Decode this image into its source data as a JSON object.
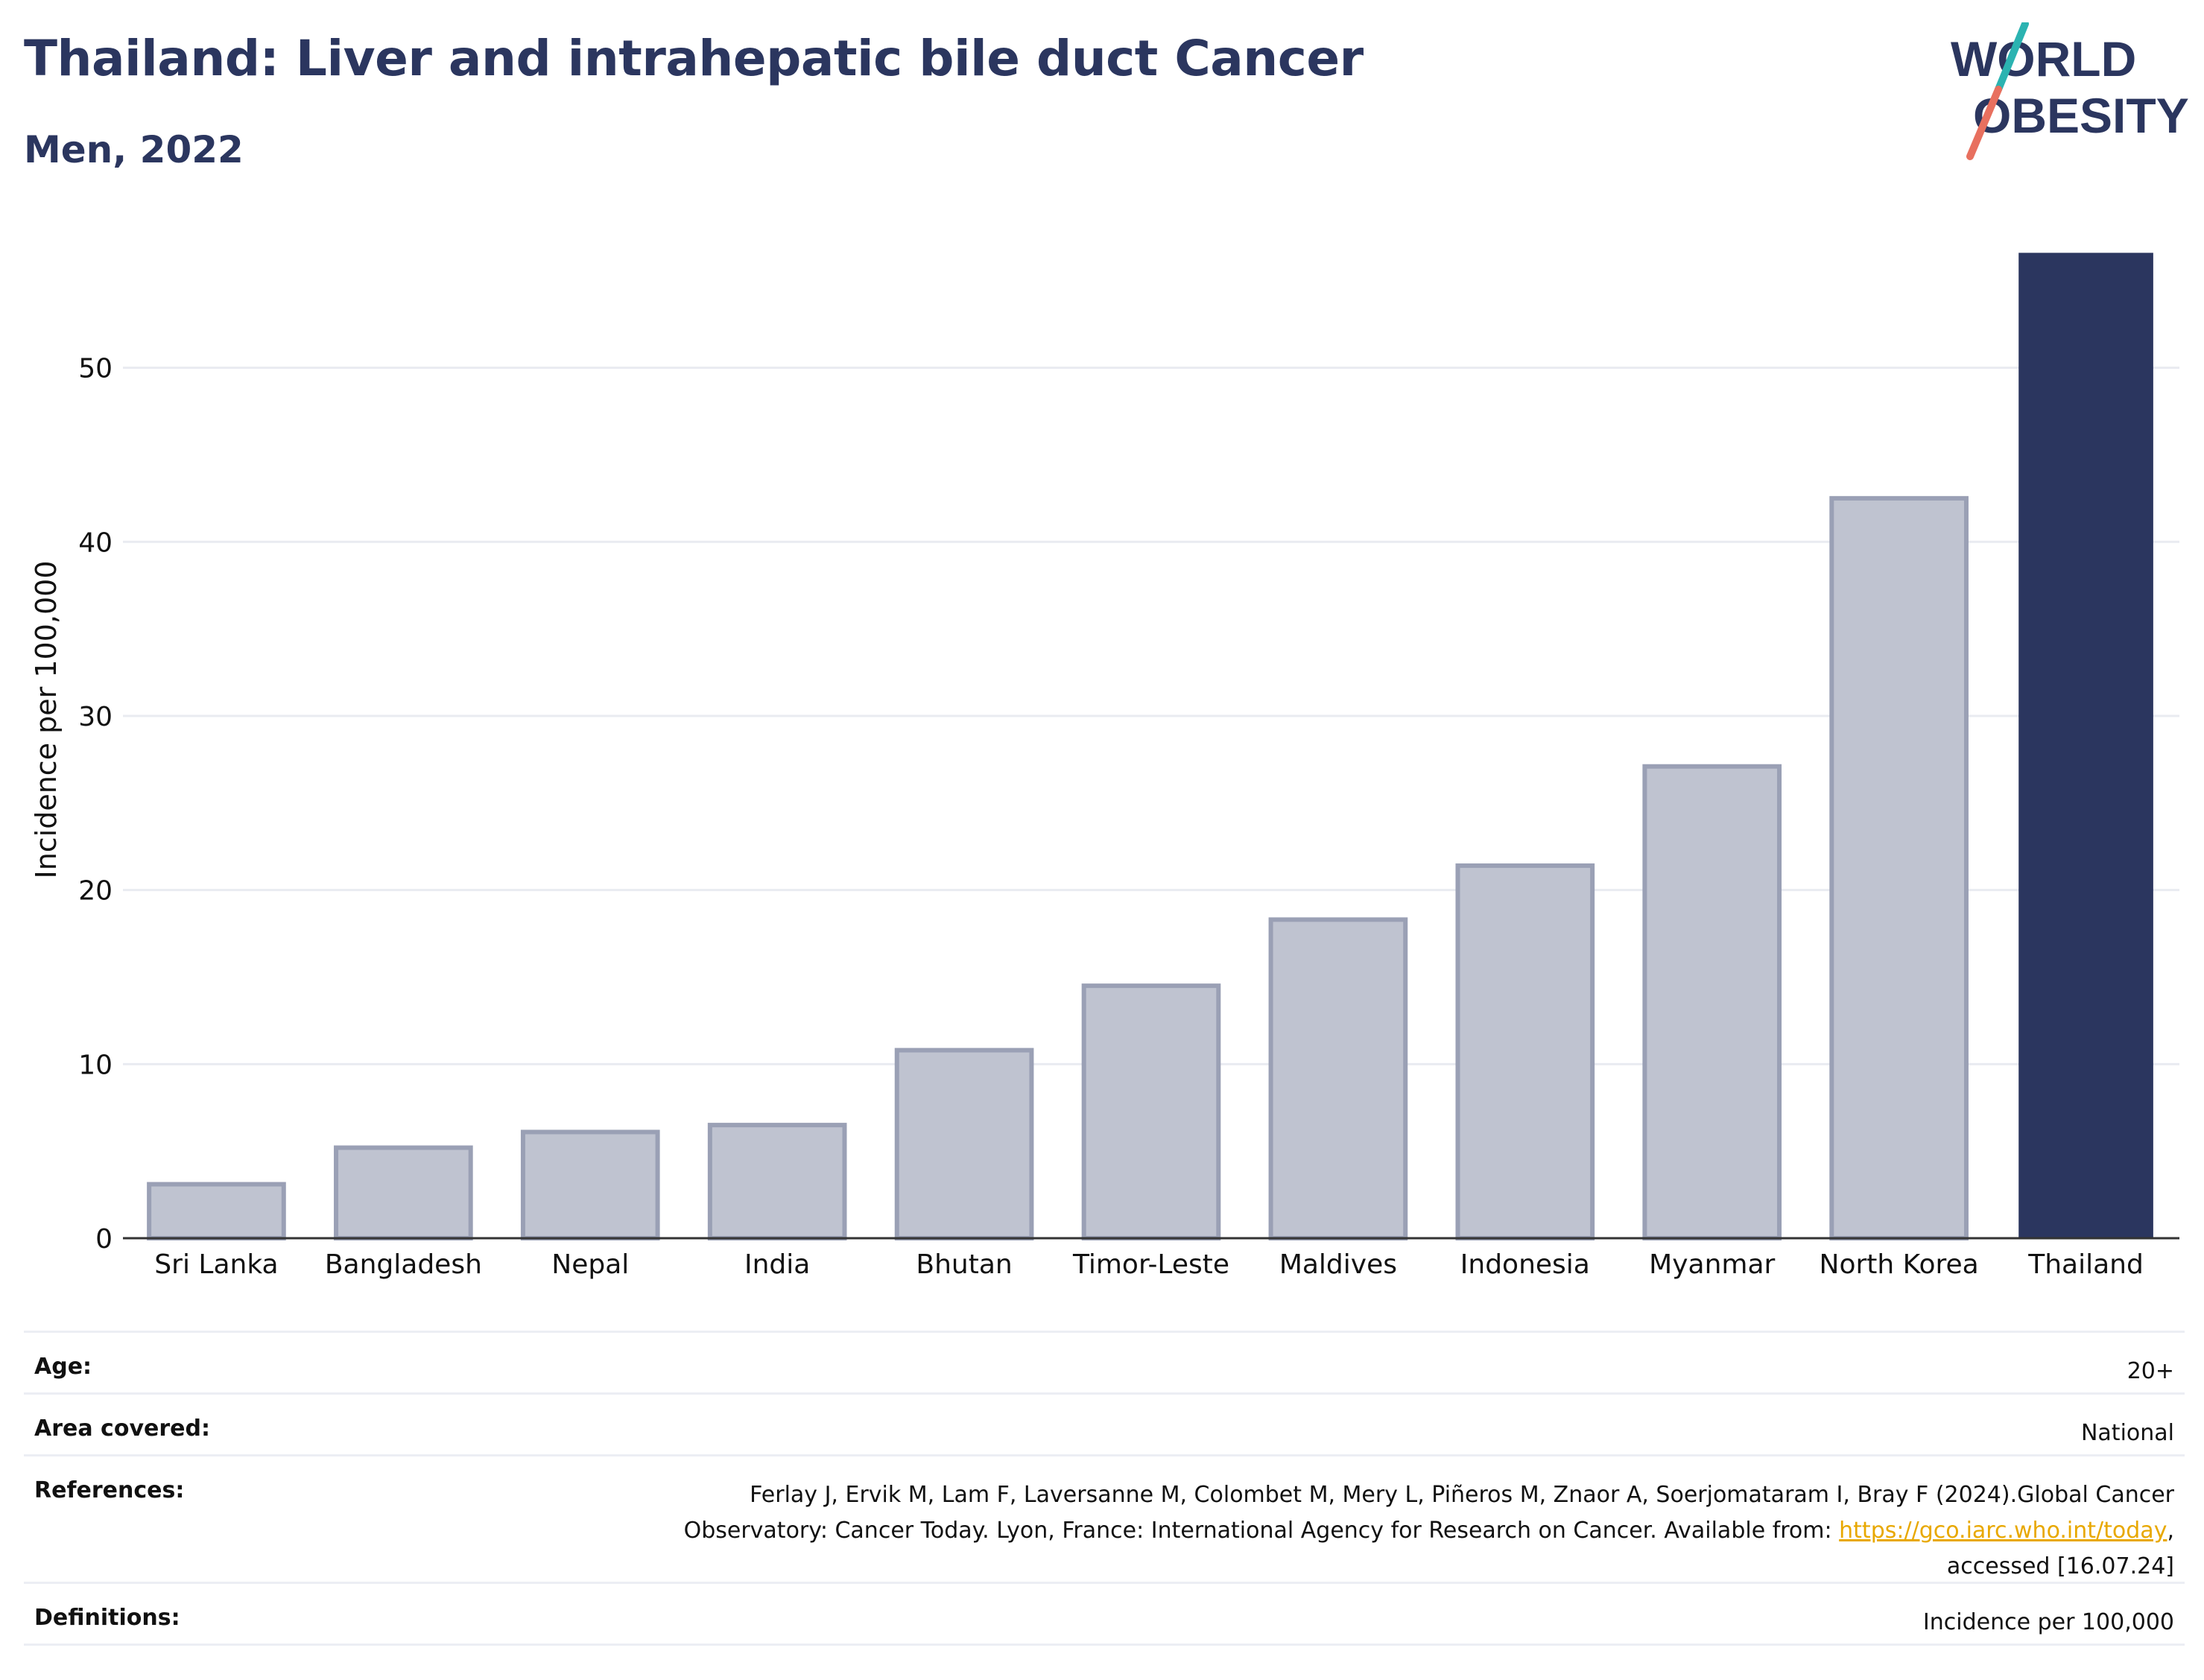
{
  "header": {
    "title": "Thailand: Liver and intrahepatic bile duct Cancer",
    "subtitle": "Men, 2022"
  },
  "logo": {
    "line1": "WORLD",
    "line2": "OBESITY"
  },
  "chart_data": {
    "type": "bar",
    "title": "Thailand: Liver and intrahepatic bile duct Cancer",
    "subtitle": "Men, 2022",
    "xlabel": "",
    "ylabel": "Incidence per 100,000",
    "categories": [
      "Sri Lanka",
      "Bangladesh",
      "Nepal",
      "India",
      "Bhutan",
      "Timor-Leste",
      "Maldives",
      "Indonesia",
      "Myanmar",
      "North Korea",
      "Thailand"
    ],
    "values": [
      3.1,
      5.2,
      6.1,
      6.5,
      10.8,
      14.5,
      18.3,
      21.4,
      27.1,
      42.5,
      56.6
    ],
    "highlight": "Thailand",
    "ylim": [
      0,
      57
    ],
    "yticks": [
      0,
      10,
      20,
      30,
      40,
      50
    ],
    "grid": true,
    "colors": {
      "highlight": "#2b365f",
      "others": "#bfc3d0",
      "others_border": "#9aa0b5"
    }
  },
  "info": {
    "rows": [
      {
        "key": "Age:",
        "value": "20+"
      },
      {
        "key": "Area covered:",
        "value": "National"
      },
      {
        "key": "References:",
        "value_line1": "Ferlay J, Ervik M, Lam F, Laversanne M, Colombet M, Mery L, Piñeros M, Znaor A, Soerjomataram I, Bray F (2024).Global Cancer",
        "value_line2_pre": "Observatory: Cancer Today. Lyon, France: International Agency for Research on Cancer. Available from: ",
        "link": "https://gco.iarc.who.int/today",
        "value_line2_post": ",",
        "value_line3": "accessed [16.07.24]"
      },
      {
        "key": "Definitions:",
        "value": "Incidence per 100,000"
      }
    ]
  }
}
